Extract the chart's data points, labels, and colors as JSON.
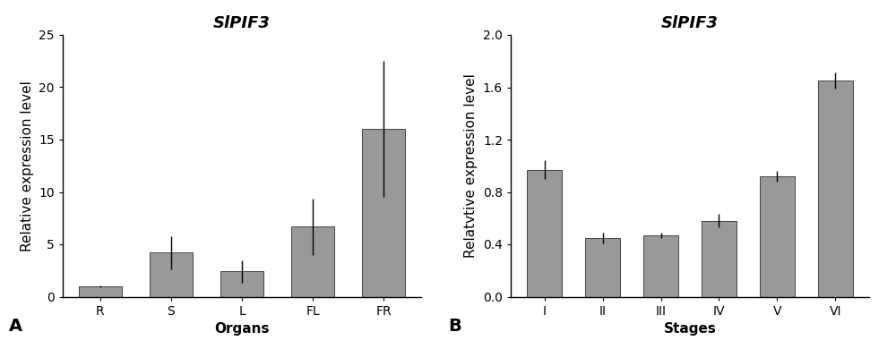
{
  "chart_A": {
    "title": "SlPIF3",
    "categories": [
      "R",
      "S",
      "L",
      "FL",
      "FR"
    ],
    "values": [
      1.0,
      4.2,
      2.4,
      6.7,
      16.0
    ],
    "errors": [
      0.1,
      1.6,
      1.1,
      2.7,
      6.5
    ],
    "xlabel": "Organs",
    "ylabel": "Relative expression level",
    "ylim": [
      0,
      25
    ],
    "yticks": [
      0,
      5,
      10,
      15,
      20,
      25
    ],
    "ytick_labels": [
      "0",
      "5",
      "10",
      "15",
      "20",
      "25"
    ],
    "label": "A",
    "bar_color": "#999999"
  },
  "chart_B": {
    "title": "SlPIF3",
    "categories": [
      "I",
      "II",
      "III",
      "IV",
      "V",
      "VI"
    ],
    "values": [
      0.97,
      0.45,
      0.47,
      0.58,
      0.92,
      1.65
    ],
    "errors": [
      0.07,
      0.04,
      0.02,
      0.05,
      0.04,
      0.06
    ],
    "xlabel": "Stages",
    "ylabel": "Relatvtive expression level",
    "ylim": [
      0,
      2.0
    ],
    "yticks": [
      0.0,
      0.4,
      0.8,
      1.2,
      1.6,
      2.0
    ],
    "ytick_labels": [
      "0.0",
      "0.4",
      "0.8",
      "1.2",
      "1.6",
      "2.0"
    ],
    "label": "B",
    "bar_color": "#999999"
  },
  "background_color": "#ffffff",
  "edge_color": "#444444",
  "title_fontsize": 13,
  "label_fontsize": 11,
  "tick_fontsize": 10,
  "panel_label_fontsize": 14
}
